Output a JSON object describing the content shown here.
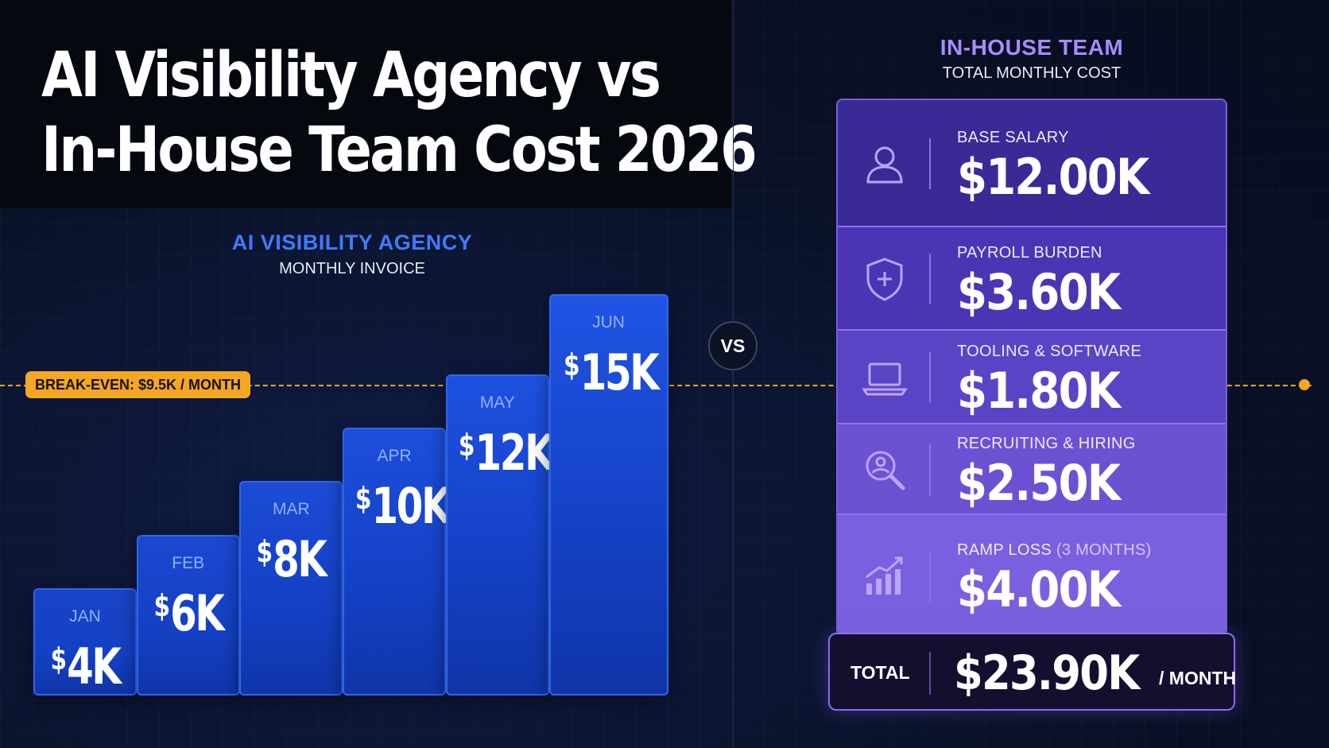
{
  "title_lines": [
    "AI Visibility Agency vs",
    "In-House Team Cost 2026"
  ],
  "agency": {
    "title": "AI VISIBILITY AGENCY",
    "subtitle": "MONTHLY INVOICE"
  },
  "breakeven_label": "BREAK-EVEN: $9.5K / MONTH",
  "vs_label": "VS",
  "chart_data": [
    {
      "type": "bar",
      "title": "AI VISIBILITY AGENCY",
      "subtitle": "MONTHLY INVOICE",
      "categories": [
        "JAN",
        "FEB",
        "MAR",
        "APR",
        "MAY",
        "JUN"
      ],
      "values": [
        4,
        6,
        8,
        10,
        12,
        15
      ],
      "value_labels": [
        {
          "cur": "$",
          "num": "4K"
        },
        {
          "cur": "$",
          "num": "6K"
        },
        {
          "cur": "$",
          "num": "8K"
        },
        {
          "cur": "$",
          "num": "10K"
        },
        {
          "cur": "$",
          "num": "12K"
        },
        {
          "cur": "$",
          "num": "15K"
        }
      ],
      "unit": "K USD",
      "reference_line": {
        "label": "BREAK-EVEN: $9.5K / MONTH",
        "value": 9.5
      },
      "ylim": [
        0,
        16
      ],
      "grid": false,
      "bar_color": "#1a48d4"
    },
    {
      "type": "table",
      "title": "IN-HOUSE TEAM",
      "subtitle": "TOTAL MONTHLY COST",
      "rows": [
        {
          "label": "BASE SALARY",
          "note": "",
          "value": "$12.00K",
          "icon": "user-icon"
        },
        {
          "label": "PAYROLL BURDEN",
          "note": "",
          "value": "$3.60K",
          "icon": "shield-plus-icon"
        },
        {
          "label": "TOOLING & SOFTWARE",
          "note": "",
          "value": "$1.80K",
          "icon": "laptop-icon"
        },
        {
          "label": "RECRUITING & HIRING",
          "note": "",
          "value": "$2.50K",
          "icon": "search-person-icon"
        },
        {
          "label": "RAMP LOSS ",
          "note": "(3 MONTHS)",
          "value": "$4.00K",
          "icon": "growth-chart-icon"
        }
      ],
      "total": {
        "label": "TOTAL",
        "value": "$23.90K",
        "unit": "/ MONTH"
      }
    }
  ],
  "colors": {
    "background": "#0b1226",
    "agency_accent": "#3f7bff",
    "inhouse_accent": "#a98bff",
    "breakeven": "#f5a623",
    "row_gradient": [
      "#3a2a96",
      "#4a36b4",
      "#5a44c6",
      "#6a52d2",
      "#7a60de"
    ]
  }
}
